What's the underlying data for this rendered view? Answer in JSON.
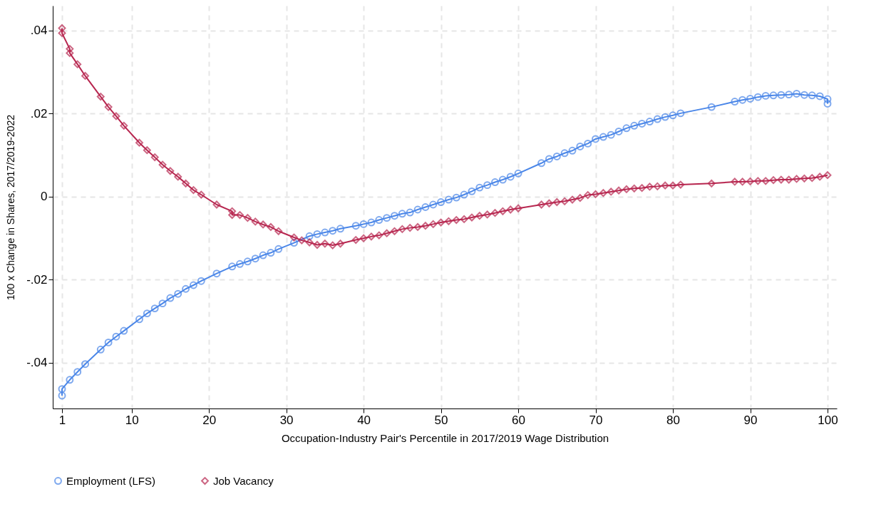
{
  "chart_data": {
    "type": "line",
    "xlabel": "Occupation-Industry Pair's Percentile in 2017/2019 Wage Distribution",
    "ylabel": "100 x Change in Shares, 2017/2019-2022",
    "xlim": [
      -0.2,
      101.2
    ],
    "xticks": [
      1,
      10,
      20,
      30,
      40,
      50,
      60,
      70,
      80,
      90,
      100
    ],
    "ylim": [
      -0.051,
      0.046
    ],
    "yticks": [
      {
        "value": -0.04,
        "label": "-.04"
      },
      {
        "value": -0.02,
        "label": "-.02"
      },
      0,
      {
        "value": 0.02,
        "label": ".02"
      },
      {
        "value": 0.04,
        "label": ".04"
      }
    ],
    "grid": true,
    "legend": "bottom",
    "line_style": "solid",
    "series": [
      {
        "name": "Employment (LFS)",
        "color": "#4a86e8",
        "marker": "circle",
        "x": [
          1,
          1,
          2,
          3,
          4,
          6,
          7,
          8,
          9,
          11,
          12,
          13,
          14,
          15,
          16,
          17,
          18,
          19,
          21,
          23,
          24,
          25,
          26,
          27,
          28,
          29,
          31,
          33,
          34,
          35,
          36,
          37,
          39,
          40,
          41,
          42,
          43,
          44,
          45,
          46,
          47,
          48,
          49,
          50,
          51,
          52,
          53,
          54,
          55,
          56,
          57,
          58,
          59,
          60,
          63,
          64,
          65,
          66,
          67,
          68,
          69,
          70,
          71,
          72,
          73,
          74,
          75,
          76,
          77,
          78,
          79,
          80,
          81,
          85,
          88,
          89,
          90,
          91,
          92,
          93,
          94,
          95,
          96,
          97,
          98,
          99,
          100,
          100
        ],
        "values": [
          -0.0479,
          -0.0463,
          -0.0441,
          -0.0422,
          -0.0403,
          -0.0368,
          -0.0351,
          -0.0337,
          -0.0323,
          -0.0295,
          -0.0281,
          -0.0269,
          -0.0257,
          -0.0244,
          -0.0234,
          -0.0222,
          -0.0213,
          -0.0203,
          -0.0185,
          -0.0168,
          -0.0162,
          -0.0156,
          -0.0149,
          -0.0141,
          -0.0135,
          -0.0126,
          -0.0111,
          -0.0095,
          -0.009,
          -0.0086,
          -0.0082,
          -0.0077,
          -0.007,
          -0.0066,
          -0.0062,
          -0.0056,
          -0.0051,
          -0.0046,
          -0.0041,
          -0.0038,
          -0.0031,
          -0.0025,
          -0.0019,
          -0.0013,
          -0.0007,
          -0.0002,
          0.0005,
          0.0013,
          0.0022,
          0.0028,
          0.0035,
          0.0041,
          0.0048,
          0.0056,
          0.0081,
          0.0091,
          0.0097,
          0.0105,
          0.0111,
          0.0121,
          0.0128,
          0.0139,
          0.0144,
          0.0149,
          0.0157,
          0.0165,
          0.0171,
          0.0176,
          0.0181,
          0.0187,
          0.0192,
          0.0196,
          0.0201,
          0.0216,
          0.0229,
          0.0233,
          0.0236,
          0.024,
          0.0243,
          0.0244,
          0.0245,
          0.0246,
          0.0248,
          0.0245,
          0.0244,
          0.0242,
          0.0235,
          0.0224
        ]
      },
      {
        "name": "Job Vacancy",
        "color": "#b7264f",
        "marker": "diamond",
        "x": [
          1,
          1,
          2,
          2,
          3,
          4,
          6,
          7,
          8,
          9,
          11,
          12,
          13,
          14,
          15,
          16,
          17,
          18,
          19,
          21,
          23,
          23,
          24,
          25,
          26,
          27,
          28,
          29,
          31,
          32,
          33,
          34,
          35,
          36,
          37,
          39,
          40,
          41,
          42,
          43,
          44,
          45,
          46,
          47,
          48,
          49,
          50,
          51,
          52,
          53,
          54,
          55,
          56,
          57,
          58,
          59,
          60,
          63,
          64,
          65,
          66,
          67,
          68,
          69,
          70,
          71,
          72,
          73,
          74,
          75,
          76,
          77,
          78,
          79,
          80,
          81,
          85,
          88,
          89,
          90,
          91,
          92,
          93,
          94,
          95,
          96,
          97,
          98,
          99,
          100
        ],
        "values": [
          0.0406,
          0.0394,
          0.0356,
          0.0346,
          0.0319,
          0.0291,
          0.0241,
          0.0216,
          0.0194,
          0.0171,
          0.013,
          0.0112,
          0.0095,
          0.0077,
          0.0062,
          0.0048,
          0.0032,
          0.0016,
          0.0005,
          -0.0019,
          -0.0035,
          -0.0044,
          -0.0044,
          -0.0051,
          -0.006,
          -0.0067,
          -0.0073,
          -0.0083,
          -0.0098,
          -0.0105,
          -0.011,
          -0.0116,
          -0.0113,
          -0.0117,
          -0.0113,
          -0.0104,
          -0.01,
          -0.0096,
          -0.0093,
          -0.0088,
          -0.0083,
          -0.0078,
          -0.0075,
          -0.0073,
          -0.007,
          -0.0066,
          -0.0062,
          -0.0059,
          -0.0056,
          -0.0054,
          -0.005,
          -0.0046,
          -0.0043,
          -0.0039,
          -0.0035,
          -0.0031,
          -0.0028,
          -0.0019,
          -0.0016,
          -0.0013,
          -0.0011,
          -0.0007,
          -0.0003,
          0.0004,
          0.0006,
          0.0009,
          0.0012,
          0.0015,
          0.0018,
          0.002,
          0.0021,
          0.0024,
          0.0025,
          0.0027,
          0.0027,
          0.0029,
          0.0032,
          0.0036,
          0.0036,
          0.0037,
          0.0038,
          0.0038,
          0.004,
          0.0041,
          0.0041,
          0.0043,
          0.0044,
          0.0045,
          0.0048,
          0.0052
        ]
      }
    ]
  }
}
